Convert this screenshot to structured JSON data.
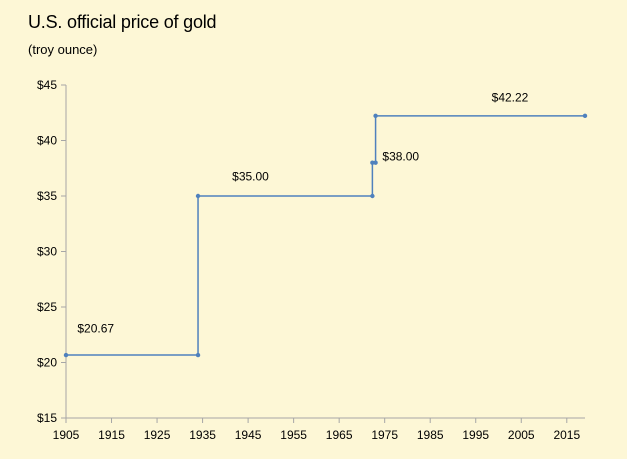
{
  "chart_data": {
    "type": "line",
    "style": "step",
    "title": "U.S. official price of gold",
    "subtitle": "(troy ounce)",
    "xlabel": "",
    "ylabel": "",
    "xlim": [
      1905,
      2019
    ],
    "ylim": [
      15,
      45
    ],
    "x_ticks": [
      1905,
      1915,
      1925,
      1935,
      1945,
      1955,
      1965,
      1975,
      1985,
      1995,
      2005,
      2015
    ],
    "y_ticks": [
      15,
      20,
      25,
      30,
      35,
      40,
      45
    ],
    "y_tick_labels": [
      "$15",
      "$20",
      "$25",
      "$30",
      "$35",
      "$40",
      "$45"
    ],
    "grid": false,
    "series": [
      {
        "color": "#4f81bd",
        "points": [
          {
            "x": 1905,
            "y": 20.67
          },
          {
            "x": 1934,
            "y": 20.67
          },
          {
            "x": 1934,
            "y": 35.0
          },
          {
            "x": 1972.3,
            "y": 35.0
          },
          {
            "x": 1972.3,
            "y": 38.0
          },
          {
            "x": 1973,
            "y": 38.0
          },
          {
            "x": 1973,
            "y": 42.22
          },
          {
            "x": 2019,
            "y": 42.22
          }
        ]
      }
    ],
    "annotations": [
      {
        "text": "$20.67",
        "x": 1907.5,
        "y": 22.7
      },
      {
        "text": "$35.00",
        "x": 1941.5,
        "y": 36.4
      },
      {
        "text": "$38.00",
        "x": 1974.5,
        "y": 38.2
      },
      {
        "text": "$42.22",
        "x": 1998.5,
        "y": 43.5
      }
    ]
  }
}
